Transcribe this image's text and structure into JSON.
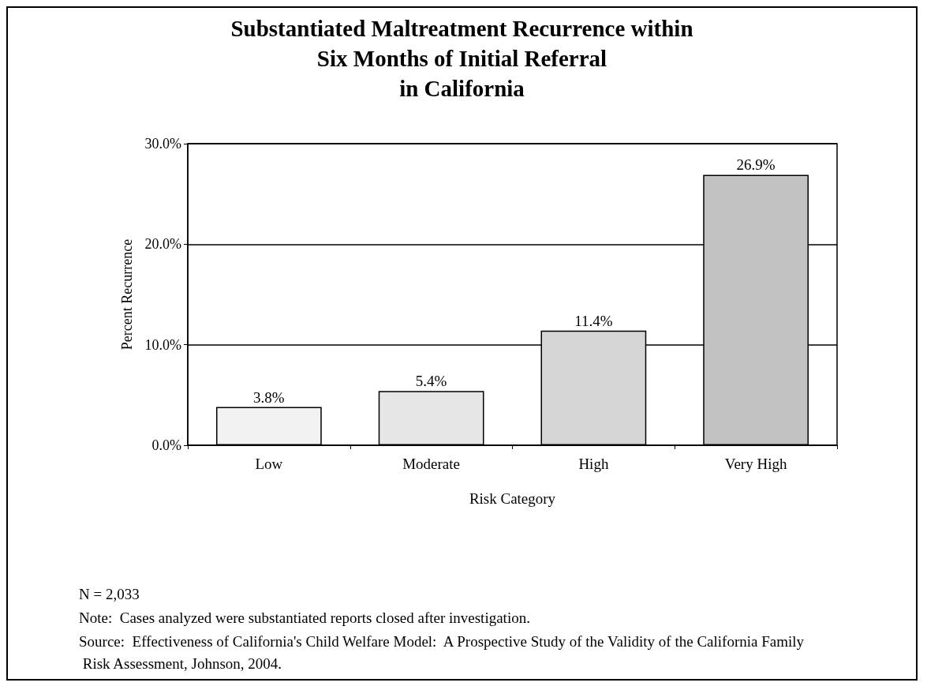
{
  "chart_data": {
    "type": "bar",
    "title": "Substantiated Maltreatment Recurrence within\nSix Months of Initial Referral\nin California",
    "xlabel": "Risk Category",
    "ylabel": "Percent Recurrence",
    "categories": [
      "Low",
      "Moderate",
      "High",
      "Very High"
    ],
    "values": [
      3.8,
      5.4,
      11.4,
      26.9
    ],
    "colors": [
      "#f2f2f2",
      "#e6e6e6",
      "#d6d6d6",
      "#c2c2c2"
    ],
    "value_labels": [
      "3.8%",
      "5.4%",
      "11.4%",
      "26.9%"
    ],
    "ylim": [
      0,
      30
    ],
    "yticks": [
      {
        "value": 0,
        "label": "0.0%"
      },
      {
        "value": 10,
        "label": "10.0%"
      },
      {
        "value": 20,
        "label": "20.0%"
      },
      {
        "value": 30,
        "label": "30.0%"
      }
    ],
    "grid": "y",
    "annotations": [
      "N = 2,033",
      "Note:  Cases analyzed were substantiated reports closed after investigation.",
      "Source:  Effectiveness of California's Child Welfare Model:  A Prospective Study of the Validity of the California Family Risk Assessment, Johnson, 2004."
    ]
  }
}
